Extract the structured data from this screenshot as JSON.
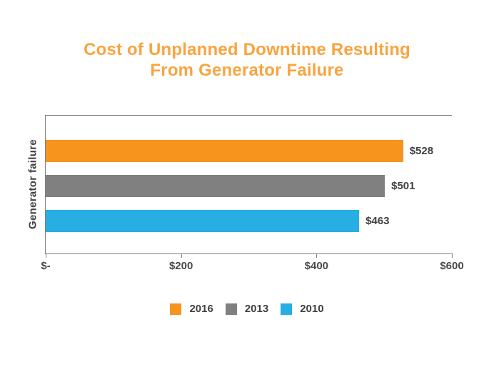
{
  "title": {
    "lines": [
      "Cost of Unplanned Downtime Resulting",
      "From Generator Failure"
    ],
    "color": "#F9A440"
  },
  "chart_data": {
    "type": "bar",
    "orientation": "horizontal",
    "title": "Cost of Unplanned Downtime Resulting From Generator Failure",
    "categories": [
      "Generator failure"
    ],
    "series": [
      {
        "name": "2016",
        "value": 528,
        "label": "$528",
        "color": "#F7941E"
      },
      {
        "name": "2013",
        "value": 501,
        "label": "$501",
        "color": "#808080"
      },
      {
        "name": "2010",
        "value": 463,
        "label": "$463",
        "color": "#27AEE3"
      }
    ],
    "xlabel": "",
    "ylabel": "Generator failure",
    "xlim": [
      0,
      600
    ],
    "xticks": [
      {
        "value": 0,
        "label": "$-"
      },
      {
        "value": 200,
        "label": "$200"
      },
      {
        "value": 400,
        "label": "$400"
      },
      {
        "value": 600,
        "label": "$600"
      }
    ],
    "grid": false,
    "legend_position": "bottom",
    "axis_color": "#808080"
  }
}
